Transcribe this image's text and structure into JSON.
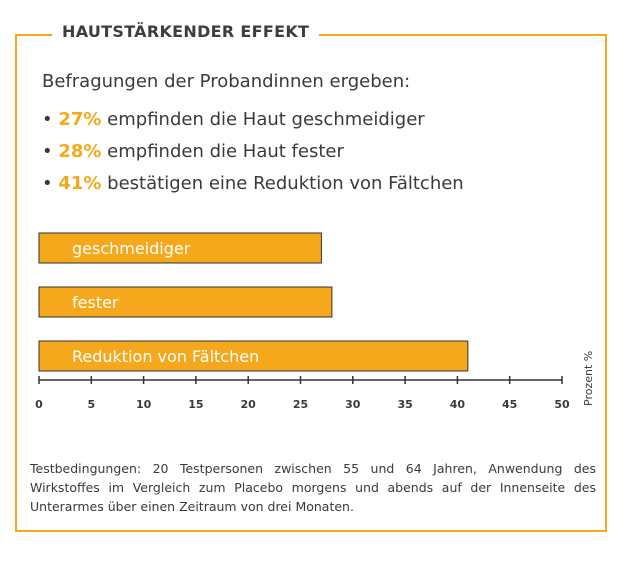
{
  "heading": "HAUTSTÄRKENDER EFFEKT",
  "intro": "Befragungen der Probandinnen ergeben:",
  "bullets": [
    {
      "pct": "27%",
      "text": "empfinden die Haut geschmeidiger"
    },
    {
      "pct": "28%",
      "text": "empfinden die Haut fester"
    },
    {
      "pct": "41%",
      "text": "bestätigen eine Reduktion von Fältchen"
    }
  ],
  "chart_data": {
    "type": "bar",
    "orientation": "horizontal",
    "categories": [
      "geschmeidiger",
      "fester",
      "Reduktion von Fältchen"
    ],
    "values": [
      27,
      28,
      41
    ],
    "xlabel": "Prozent %",
    "xlim": [
      0,
      50
    ],
    "xticks": [
      0,
      5,
      10,
      15,
      20,
      25,
      30,
      35,
      40,
      45,
      50
    ],
    "bar_color": "#f5a81c",
    "grid": false
  },
  "footnote": "Testbedingungen: 20 Testpersonen zwischen 55 und 64 Jahren, Anwendung des Wirkstoffes im Vergleich zum Placebo morgens und abends auf der Innenseite des Unterarmes über einen Zeitraum von drei Monaten."
}
